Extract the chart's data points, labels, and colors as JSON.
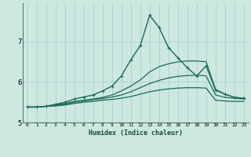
{
  "xlabel": "Humidex (Indice chaleur)",
  "bg_color": "#cce8e0",
  "grid_color": "#b0d0cc",
  "line_color": "#1a6b5a",
  "xlim": [
    -0.5,
    23.5
  ],
  "ylim": [
    5.0,
    7.95
  ],
  "xticks": [
    0,
    1,
    2,
    3,
    4,
    5,
    6,
    7,
    8,
    9,
    10,
    11,
    12,
    13,
    14,
    15,
    16,
    17,
    18,
    19,
    20,
    21,
    22,
    23
  ],
  "yticks": [
    5,
    6,
    7
  ],
  "series": [
    {
      "x": [
        0,
        1,
        2,
        3,
        4,
        5,
        6,
        7,
        8,
        9,
        10,
        11,
        12,
        13,
        14,
        15,
        16,
        17,
        18,
        19,
        20,
        21,
        22,
        23
      ],
      "y": [
        5.38,
        5.38,
        5.4,
        5.45,
        5.5,
        5.58,
        5.63,
        5.68,
        5.78,
        5.9,
        6.15,
        6.55,
        6.9,
        7.65,
        7.35,
        6.85,
        6.6,
        6.35,
        6.15,
        6.4,
        5.8,
        5.7,
        5.62,
        5.6
      ],
      "marker": "+",
      "markersize": 3.5,
      "linewidth": 1.0
    },
    {
      "x": [
        0,
        1,
        2,
        3,
        4,
        5,
        6,
        7,
        8,
        9,
        10,
        11,
        12,
        13,
        14,
        15,
        16,
        17,
        18,
        19,
        20,
        21,
        22,
        23
      ],
      "y": [
        5.38,
        5.38,
        5.4,
        5.43,
        5.47,
        5.52,
        5.55,
        5.58,
        5.62,
        5.68,
        5.78,
        5.9,
        6.05,
        6.25,
        6.38,
        6.45,
        6.5,
        6.52,
        6.52,
        6.5,
        5.82,
        5.7,
        5.62,
        5.6
      ],
      "marker": null,
      "markersize": 0,
      "linewidth": 0.9
    },
    {
      "x": [
        0,
        1,
        2,
        3,
        4,
        5,
        6,
        7,
        8,
        9,
        10,
        11,
        12,
        13,
        14,
        15,
        16,
        17,
        18,
        19,
        20,
        21,
        22,
        23
      ],
      "y": [
        5.38,
        5.38,
        5.4,
        5.42,
        5.45,
        5.5,
        5.53,
        5.56,
        5.59,
        5.63,
        5.68,
        5.76,
        5.86,
        5.96,
        6.04,
        6.1,
        6.14,
        6.16,
        6.17,
        6.15,
        5.68,
        5.62,
        5.6,
        5.58
      ],
      "marker": null,
      "markersize": 0,
      "linewidth": 0.9
    },
    {
      "x": [
        0,
        1,
        2,
        3,
        4,
        5,
        6,
        7,
        8,
        9,
        10,
        11,
        12,
        13,
        14,
        15,
        16,
        17,
        18,
        19,
        20,
        21,
        22,
        23
      ],
      "y": [
        5.38,
        5.38,
        5.4,
        5.41,
        5.43,
        5.47,
        5.5,
        5.52,
        5.55,
        5.57,
        5.6,
        5.64,
        5.7,
        5.76,
        5.8,
        5.83,
        5.85,
        5.86,
        5.86,
        5.85,
        5.55,
        5.53,
        5.52,
        5.52
      ],
      "marker": null,
      "markersize": 0,
      "linewidth": 0.9
    }
  ]
}
